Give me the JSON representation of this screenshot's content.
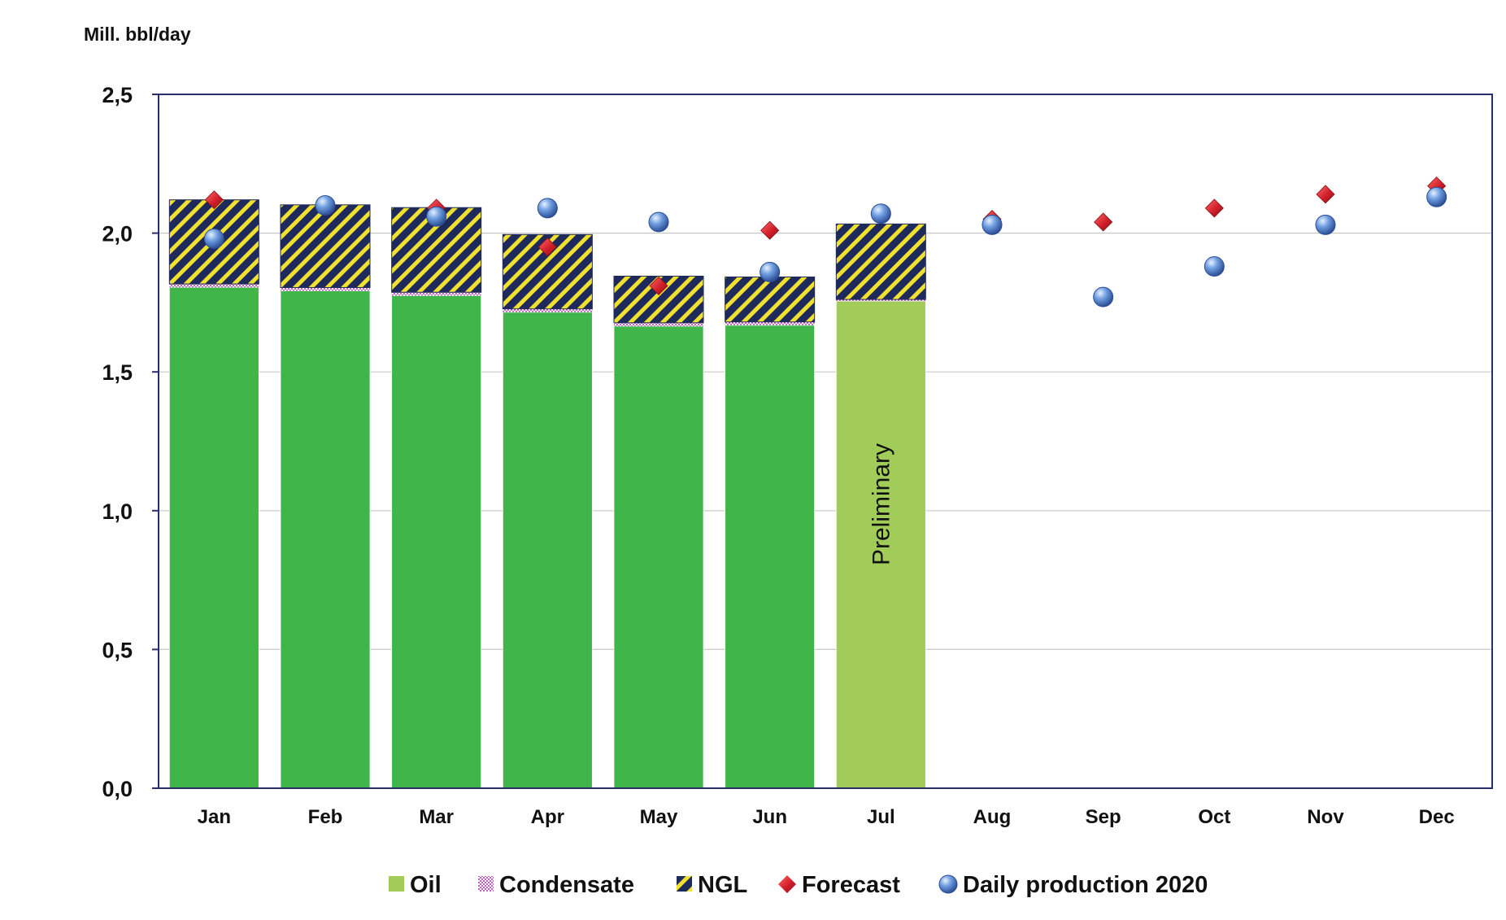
{
  "chart_data": {
    "type": "bar",
    "stacked": true,
    "unit_label": "Mill. bbl/day",
    "ylim": [
      0,
      2.5
    ],
    "yticks": [
      0,
      0.5,
      1.0,
      1.5,
      2.0,
      2.5
    ],
    "ytick_labels": [
      "0,0",
      "0,5",
      "1,0",
      "1,5",
      "2,0",
      "2,5"
    ],
    "grid": true,
    "categories": [
      "Jan",
      "Feb",
      "Mar",
      "Apr",
      "May",
      "Jun",
      "Jul",
      "Aug",
      "Sep",
      "Oct",
      "Nov",
      "Dec"
    ],
    "series": [
      {
        "name": "Oil",
        "kind": "bar",
        "color": "#3fb54a",
        "preliminary_color": "#a1cc5a",
        "values": [
          1.805,
          1.792,
          1.775,
          1.715,
          1.665,
          1.668,
          1.755,
          null,
          null,
          null,
          null,
          null
        ]
      },
      {
        "name": "Condensate",
        "kind": "bar",
        "color": "#c080c8",
        "values": [
          0.012,
          0.012,
          0.012,
          0.012,
          0.012,
          0.012,
          0.006,
          null,
          null,
          null,
          null,
          null
        ]
      },
      {
        "name": "NGL",
        "kind": "bar",
        "color": "#1f2a5c",
        "stripe_color": "#f0e030",
        "values": [
          0.303,
          0.298,
          0.305,
          0.268,
          0.168,
          0.162,
          0.272,
          null,
          null,
          null,
          null,
          null
        ]
      },
      {
        "name": "Forecast",
        "kind": "marker",
        "marker": "diamond",
        "color": "#d21f2a",
        "values": [
          2.12,
          null,
          2.09,
          1.95,
          1.81,
          2.01,
          null,
          2.05,
          2.04,
          2.09,
          2.14,
          2.17
        ]
      },
      {
        "name": "Daily production 2020",
        "kind": "marker",
        "marker": "circle",
        "color": "#5b8fd6",
        "values": [
          1.98,
          2.1,
          2.06,
          2.09,
          2.04,
          1.86,
          2.07,
          2.03,
          1.77,
          1.88,
          2.03,
          2.13
        ]
      }
    ],
    "preliminary_index": 6,
    "annotation": "Preliminary",
    "legend": [
      "Oil",
      "Condensate",
      "NGL",
      "Forecast",
      "Daily production 2020"
    ],
    "legend_position": "bottom"
  }
}
